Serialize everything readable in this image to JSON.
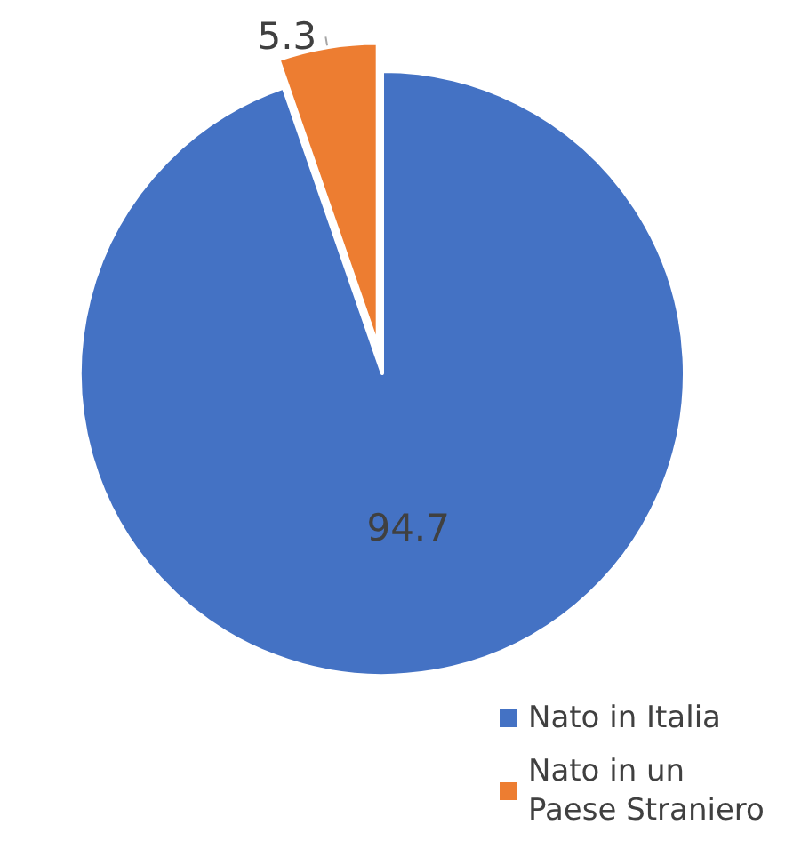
{
  "chart_data": {
    "type": "pie",
    "categories": [
      "Nato in Italia",
      "Nato in un Paese Straniero"
    ],
    "values": [
      94.7,
      5.3
    ],
    "colors": [
      "#4472c4",
      "#ed7d31"
    ],
    "data_labels": true,
    "legend": "bottom right"
  }
}
